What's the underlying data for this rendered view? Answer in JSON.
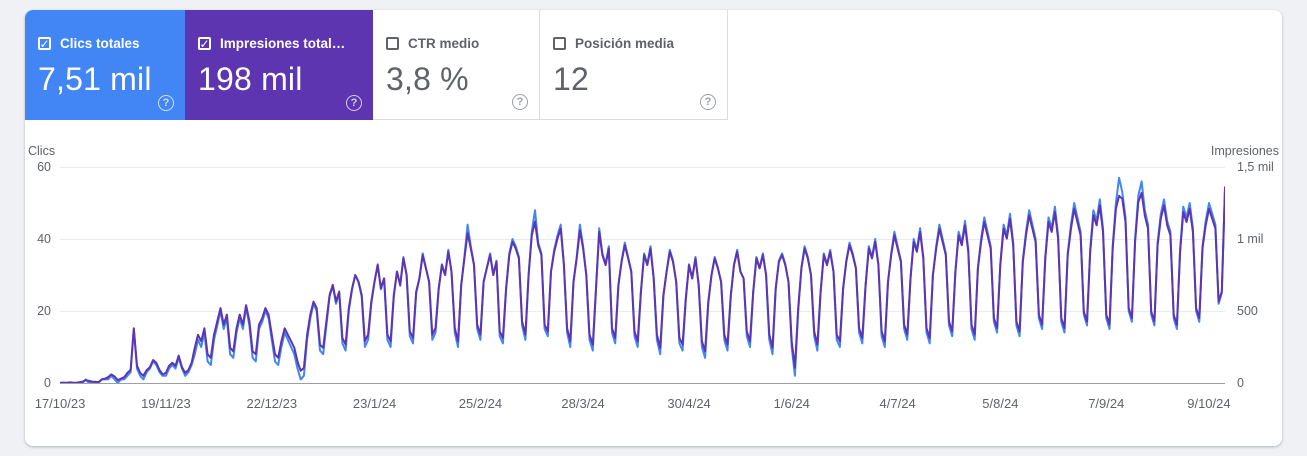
{
  "icons": {
    "check": "✓",
    "help": "?"
  },
  "cards": [
    {
      "label": "Clics totales",
      "value": "7,51 mil",
      "checked": true,
      "bg": "#4285f4"
    },
    {
      "label": "Impresiones total…",
      "value": "198 mil",
      "checked": true,
      "bg": "#5e35b1"
    },
    {
      "label": "CTR medio",
      "value": "3,8 %",
      "checked": false,
      "bg": "#ffffff"
    },
    {
      "label": "Posición media",
      "value": "12",
      "checked": false,
      "bg": "#ffffff"
    }
  ],
  "chart": {
    "left_axis_title": "Clics",
    "right_axis_title": "Impresiones",
    "y_left_labels": [
      "60",
      "40",
      "20",
      "0"
    ],
    "y_right_labels": [
      "1,5 mil",
      "1 mil",
      "500",
      "0"
    ],
    "x_labels": [
      "17/10/23",
      "19/11/23",
      "22/12/23",
      "23/1/24",
      "25/2/24",
      "28/3/24",
      "30/4/24",
      "1/6/24",
      "4/7/24",
      "5/8/24",
      "7/9/24",
      "9/10/24"
    ]
  },
  "chart_data": {
    "type": "line",
    "frequency": "daily",
    "x_start": "17/10/23",
    "x_end": "14/10/24",
    "x_label_days": [
      0,
      33,
      66,
      98,
      131,
      163,
      196,
      228,
      261,
      293,
      326,
      358
    ],
    "y_left_max": 60,
    "y_right_max": 1500,
    "grid": true,
    "series": [
      {
        "name": "Clics",
        "axis": "left",
        "color": "#4285f4",
        "total_label": "7,51 mil",
        "values": [
          0,
          0,
          0,
          0,
          0,
          0,
          0,
          0,
          1,
          0,
          0,
          0,
          0,
          1,
          1,
          1,
          2,
          1,
          0,
          1,
          1,
          2,
          3,
          15,
          4,
          2,
          1,
          3,
          4,
          6,
          5,
          3,
          2,
          2,
          4,
          5,
          4,
          7,
          4,
          2,
          3,
          5,
          8,
          12,
          10,
          14,
          6,
          5,
          12,
          16,
          20,
          15,
          18,
          8,
          7,
          14,
          18,
          15,
          21,
          16,
          7,
          6,
          15,
          17,
          20,
          18,
          12,
          6,
          5,
          10,
          14,
          12,
          10,
          8,
          4,
          1,
          2,
          12,
          18,
          22,
          20,
          9,
          8,
          16,
          24,
          27,
          22,
          25,
          11,
          9,
          20,
          26,
          30,
          28,
          24,
          10,
          12,
          22,
          28,
          33,
          26,
          29,
          12,
          10,
          24,
          31,
          27,
          35,
          30,
          13,
          11,
          25,
          29,
          36,
          32,
          28,
          12,
          14,
          26,
          33,
          30,
          37,
          31,
          14,
          10,
          27,
          35,
          44,
          38,
          33,
          15,
          12,
          28,
          32,
          36,
          30,
          34,
          13,
          11,
          26,
          36,
          40,
          38,
          35,
          16,
          12,
          30,
          42,
          48,
          39,
          36,
          15,
          13,
          31,
          37,
          41,
          44,
          33,
          14,
          10,
          28,
          35,
          44,
          38,
          30,
          12,
          9,
          26,
          43,
          36,
          33,
          38,
          14,
          11,
          27,
          34,
          39,
          35,
          31,
          13,
          10,
          25,
          36,
          33,
          38,
          29,
          12,
          8,
          24,
          31,
          37,
          34,
          28,
          11,
          9,
          23,
          33,
          29,
          35,
          27,
          10,
          7,
          22,
          30,
          35,
          32,
          28,
          12,
          9,
          24,
          33,
          37,
          31,
          29,
          13,
          10,
          25,
          35,
          32,
          36,
          30,
          12,
          8,
          26,
          34,
          36,
          33,
          28,
          10,
          2,
          20,
          32,
          38,
          35,
          30,
          13,
          9,
          25,
          36,
          33,
          37,
          31,
          12,
          10,
          26,
          34,
          39,
          36,
          32,
          14,
          11,
          27,
          38,
          35,
          40,
          33,
          13,
          10,
          28,
          36,
          42,
          38,
          34,
          15,
          12,
          29,
          40,
          37,
          43,
          35,
          14,
          11,
          30,
          38,
          44,
          40,
          36,
          16,
          13,
          31,
          42,
          39,
          45,
          37,
          15,
          12,
          32,
          40,
          46,
          42,
          38,
          17,
          14,
          33,
          44,
          41,
          47,
          39,
          16,
          13,
          34,
          42,
          48,
          44,
          40,
          18,
          15,
          35,
          46,
          43,
          49,
          41,
          17,
          14,
          36,
          44,
          50,
          46,
          42,
          19,
          16,
          37,
          48,
          45,
          51,
          43,
          18,
          15,
          38,
          50,
          57,
          53,
          46,
          20,
          17,
          40,
          52,
          56,
          48,
          44,
          19,
          16,
          39,
          47,
          51,
          45,
          42,
          18,
          15,
          37,
          49,
          46,
          50,
          43,
          20,
          17,
          38,
          45,
          50,
          47,
          44,
          22,
          25,
          54
        ]
      },
      {
        "name": "Impresiones",
        "axis": "right",
        "color": "#5e35b1",
        "total_label": "198 mil",
        "values": [
          2,
          3,
          2,
          4,
          3,
          2,
          5,
          8,
          20,
          15,
          10,
          8,
          6,
          25,
          30,
          40,
          60,
          45,
          20,
          30,
          40,
          70,
          90,
          380,
          120,
          70,
          50,
          90,
          110,
          160,
          140,
          90,
          60,
          70,
          120,
          140,
          120,
          190,
          110,
          70,
          90,
          140,
          245,
          335,
          290,
          380,
          200,
          175,
          335,
          430,
          520,
          405,
          475,
          245,
          220,
          380,
          475,
          405,
          540,
          430,
          220,
          200,
          405,
          450,
          520,
          475,
          335,
          200,
          175,
          290,
          380,
          335,
          290,
          245,
          150,
          85,
          105,
          335,
          475,
          565,
          520,
          265,
          245,
          430,
          612,
          681,
          566,
          635,
          313,
          267,
          520,
          658,
          750,
          704,
          612,
          290,
          336,
          566,
          704,
          819,
          658,
          727,
          336,
          290,
          612,
          773,
          681,
          865,
          750,
          359,
          313,
          635,
          727,
          888,
          796,
          704,
          336,
          382,
          658,
          819,
          750,
          911,
          773,
          382,
          290,
          681,
          865,
          1040,
          934,
          819,
          405,
          336,
          704,
          796,
          888,
          750,
          842,
          359,
          313,
          658,
          888,
          980,
          934,
          865,
          428,
          336,
          750,
          1026,
          1120,
          957,
          888,
          405,
          359,
          773,
          911,
          1003,
          1072,
          819,
          382,
          290,
          704,
          865,
          1060,
          934,
          750,
          336,
          267,
          658,
          1049,
          888,
          819,
          934,
          382,
          313,
          681,
          842,
          957,
          865,
          773,
          359,
          290,
          635,
          888,
          819,
          934,
          727,
          336,
          244,
          612,
          773,
          911,
          842,
          704,
          313,
          267,
          589,
          819,
          727,
          865,
          681,
          290,
          221,
          566,
          750,
          865,
          796,
          704,
          336,
          267,
          612,
          819,
          911,
          773,
          727,
          359,
          290,
          635,
          865,
          796,
          888,
          750,
          336,
          244,
          658,
          842,
          888,
          819,
          704,
          290,
          106,
          520,
          796,
          934,
          865,
          750,
          359,
          267,
          635,
          888,
          819,
          911,
          773,
          336,
          290,
          658,
          842,
          957,
          888,
          796,
          382,
          313,
          681,
          934,
          865,
          980,
          819,
          359,
          290,
          704,
          888,
          1026,
          934,
          842,
          405,
          336,
          727,
          980,
          911,
          1049,
          865,
          382,
          313,
          750,
          934,
          1072,
          980,
          888,
          428,
          359,
          773,
          1026,
          957,
          1095,
          911,
          405,
          336,
          796,
          980,
          1118,
          1026,
          934,
          451,
          382,
          819,
          1072,
          1003,
          1141,
          957,
          428,
          359,
          842,
          1026,
          1164,
          1072,
          980,
          474,
          405,
          865,
          1118,
          1049,
          1187,
          1003,
          451,
          382,
          888,
          1072,
          1210,
          1118,
          1026,
          497,
          428,
          911,
          1164,
          1095,
          1233,
          1049,
          474,
          405,
          934,
          1210,
          1300,
          1279,
          1118,
          520,
          451,
          980,
          1256,
          1320,
          1164,
          1072,
          497,
          428,
          957,
          1141,
          1233,
          1095,
          1026,
          474,
          405,
          911,
          1187,
          1118,
          1210,
          1049,
          520,
          451,
          934,
          1095,
          1210,
          1141,
          1072,
          566,
          635,
          1360
        ]
      }
    ]
  }
}
